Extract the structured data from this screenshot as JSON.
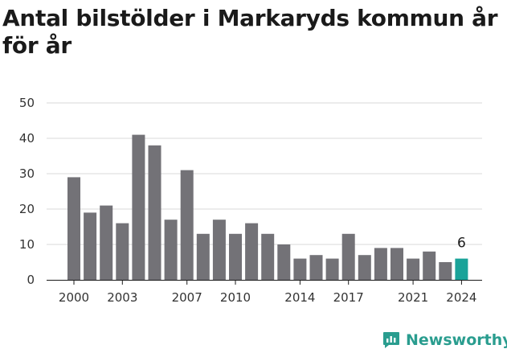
{
  "brand": {
    "name": "Newsworthy",
    "icon": "newsworthy-logo-icon",
    "color": "#2a9d8f"
  },
  "chart_data": {
    "type": "bar",
    "title": "Antal bilstölder i Markaryds kommun år för år",
    "xlabel": "",
    "ylabel": "",
    "ylim": [
      0,
      50
    ],
    "yticks": [
      0,
      10,
      20,
      30,
      40,
      50
    ],
    "xticks": [
      "2000",
      "2003",
      "2007",
      "2010",
      "2014",
      "2017",
      "2021",
      "2024"
    ],
    "categories": [
      "2000",
      "2001",
      "2002",
      "2003",
      "2004",
      "2005",
      "2006",
      "2007",
      "2008",
      "2009",
      "2010",
      "2011",
      "2012",
      "2013",
      "2014",
      "2015",
      "2016",
      "2017",
      "2018",
      "2019",
      "2020",
      "2021",
      "2022",
      "2023",
      "2024"
    ],
    "values": [
      29,
      19,
      21,
      16,
      41,
      38,
      17,
      31,
      13,
      17,
      13,
      16,
      13,
      10,
      6,
      7,
      6,
      13,
      7,
      9,
      9,
      6,
      8,
      5,
      6
    ],
    "highlight": {
      "category": "2024",
      "label": "6"
    },
    "colors": {
      "bar": "#737277",
      "highlight": "#1aa399",
      "grid": "#d9d9d9"
    },
    "grid": true,
    "legend": "none"
  }
}
